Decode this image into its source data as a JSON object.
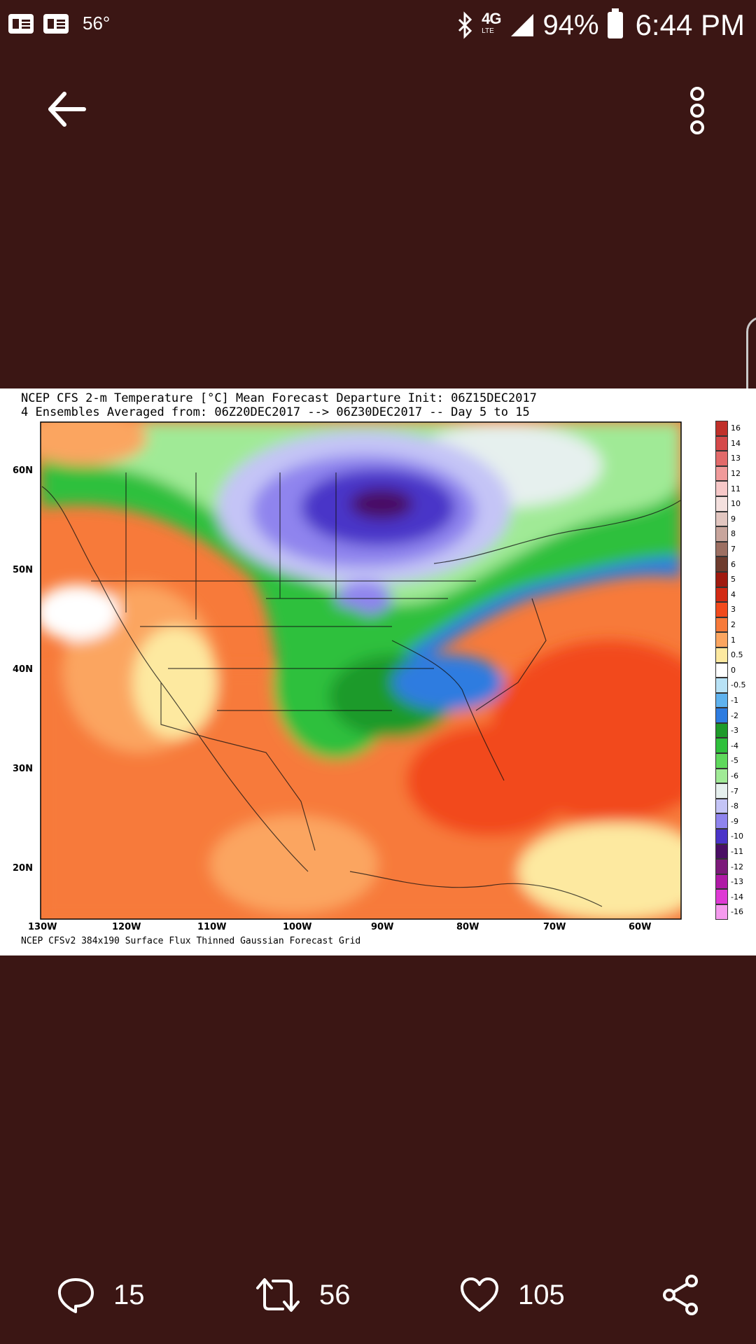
{
  "status_bar": {
    "temperature": "56°",
    "network": "4G",
    "network_sub": "LTE",
    "battery_percent": "94%",
    "time": "6:44 PM"
  },
  "icons": {
    "back": "back-arrow-icon",
    "more": "more-vertical-icon",
    "reply": "comment-icon",
    "retweet": "retweet-icon",
    "like": "heart-icon",
    "share": "share-icon"
  },
  "image": {
    "title_line1": "NCEP CFS 2-m Temperature [°C] Mean Forecast Departure Init: 06Z15DEC2017",
    "title_line2": "4 Ensembles Averaged from: 06Z20DEC2017 --> 06Z30DEC2017 -- Day 5 to 15",
    "footer": "NCEP CFSv2 384x190 Surface Flux Thinned Gaussian Forecast Grid",
    "lat_labels": [
      "60N",
      "50N",
      "40N",
      "30N",
      "20N"
    ],
    "lon_labels": [
      "130W",
      "120W",
      "110W",
      "100W",
      "90W",
      "80W",
      "70W",
      "60W"
    ],
    "legend": [
      {
        "label": "16",
        "color": "#c0302a"
      },
      {
        "label": "14",
        "color": "#d5494a"
      },
      {
        "label": "13",
        "color": "#e26a6a"
      },
      {
        "label": "12",
        "color": "#f09a9a"
      },
      {
        "label": "11",
        "color": "#f7c8c8"
      },
      {
        "label": "10",
        "color": "#f4e0de"
      },
      {
        "label": "9",
        "color": "#e2c6c0"
      },
      {
        "label": "8",
        "color": "#c8a59c"
      },
      {
        "label": "7",
        "color": "#9c6f62"
      },
      {
        "label": "6",
        "color": "#6e3c2e"
      },
      {
        "label": "5",
        "color": "#a01a10"
      },
      {
        "label": "4",
        "color": "#d22a14"
      },
      {
        "label": "3",
        "color": "#f24a1c"
      },
      {
        "label": "2",
        "color": "#f77a3a"
      },
      {
        "label": "1",
        "color": "#fba560"
      },
      {
        "label": "0.5",
        "color": "#fde9a0"
      },
      {
        "label": "0",
        "color": "#ffffff"
      },
      {
        "label": "-0.5",
        "color": "#b8e2f6"
      },
      {
        "label": "-1",
        "color": "#5fb2ee"
      },
      {
        "label": "-2",
        "color": "#2e7ce0"
      },
      {
        "label": "-3",
        "color": "#1e9a2a"
      },
      {
        "label": "-4",
        "color": "#2fc03c"
      },
      {
        "label": "-5",
        "color": "#5fd85c"
      },
      {
        "label": "-6",
        "color": "#a0ea96"
      },
      {
        "label": "-7",
        "color": "#e6f0ee"
      },
      {
        "label": "-8",
        "color": "#c4c4f6"
      },
      {
        "label": "-9",
        "color": "#8f84ee"
      },
      {
        "label": "-10",
        "color": "#4a34c8"
      },
      {
        "label": "-11",
        "color": "#4a0e64"
      },
      {
        "label": "-12",
        "color": "#7c1a7a"
      },
      {
        "label": "-13",
        "color": "#b01aa6"
      },
      {
        "label": "-14",
        "color": "#de3ad4"
      },
      {
        "label": "-16",
        "color": "#f59aee"
      }
    ]
  },
  "actions": {
    "replies": "15",
    "retweets": "56",
    "likes": "105"
  }
}
